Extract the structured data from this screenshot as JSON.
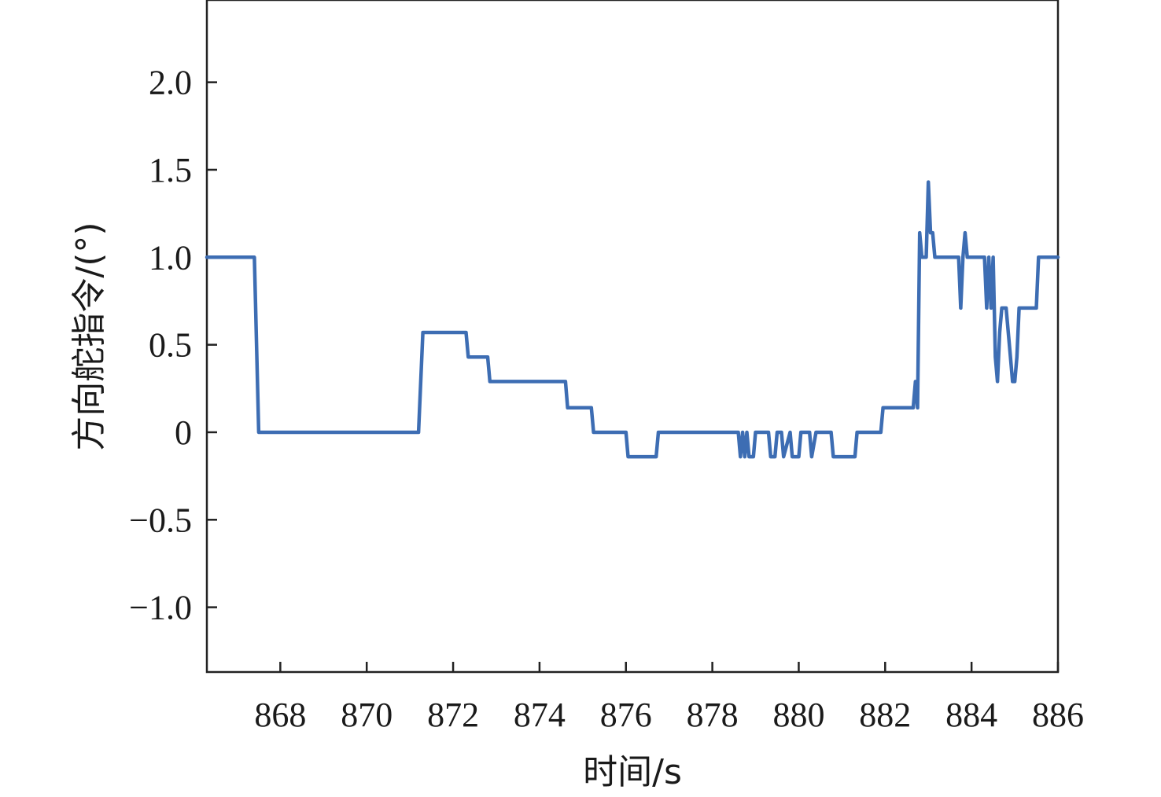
{
  "chart_data": {
    "type": "line",
    "xlabel": "时间/s",
    "ylabel": "方向舵指令/(°)",
    "xlim": [
      866.3,
      886.0
    ],
    "ylim": [
      -1.37,
      2.47
    ],
    "xticks": [
      868,
      870,
      872,
      874,
      876,
      878,
      880,
      882,
      884,
      886
    ],
    "yticks": [
      -1.0,
      -0.5,
      0,
      0.5,
      1.0,
      1.5,
      2.0
    ],
    "ytick_labels": [
      "−1.0",
      "−0.5",
      "0",
      "0.5",
      "1.0",
      "1.5",
      "2.0"
    ],
    "grid": false,
    "legend": "none",
    "colors": {
      "line": "#3d6db3",
      "axes": "#222222"
    },
    "series": [
      {
        "x": [
          866.3,
          867.4,
          867.5,
          871.2,
          871.3,
          872.3,
          872.35,
          872.8,
          872.85,
          874.6,
          874.65,
          875.2,
          875.25,
          876.0,
          876.05,
          876.7,
          876.75,
          878.6,
          878.65,
          878.7,
          878.75,
          878.8,
          878.85,
          878.95,
          879.0,
          879.05,
          879.1,
          879.3,
          879.35,
          879.45,
          879.5,
          879.6,
          879.65,
          879.8,
          879.85,
          880.0,
          880.05,
          880.25,
          880.3,
          880.4,
          880.45,
          880.55,
          880.6,
          880.75,
          880.8,
          881.3,
          881.35,
          881.9,
          881.95,
          882.65,
          882.7,
          882.75,
          882.8,
          882.85,
          882.9,
          882.95,
          883.0,
          883.05,
          883.1,
          883.15,
          883.2,
          883.3,
          883.7,
          883.75,
          883.8,
          883.85,
          883.9,
          883.95,
          884.3,
          884.35,
          884.4,
          884.45,
          884.5,
          884.55,
          884.6,
          884.65,
          884.7,
          884.75,
          884.8,
          884.9,
          884.95,
          885.0,
          885.05,
          885.1,
          885.15,
          885.2,
          885.5,
          885.55,
          886.0
        ],
        "y": [
          1.0,
          1.0,
          0.0,
          0.0,
          0.57,
          0.57,
          0.43,
          0.43,
          0.29,
          0.29,
          0.14,
          0.14,
          0.0,
          0.0,
          -0.14,
          -0.14,
          0.0,
          0.0,
          -0.14,
          0.0,
          -0.14,
          0.0,
          -0.14,
          -0.14,
          0.0,
          0.0,
          0.0,
          0.0,
          -0.14,
          -0.14,
          0.0,
          0.0,
          -0.14,
          0.0,
          -0.14,
          -0.14,
          0.0,
          0.0,
          -0.14,
          0.0,
          0.0,
          0.0,
          0.0,
          0.0,
          -0.14,
          -0.14,
          0.0,
          0.0,
          0.14,
          0.14,
          0.29,
          0.14,
          1.14,
          1.0,
          1.0,
          1.0,
          1.43,
          1.14,
          1.14,
          1.0,
          1.0,
          1.0,
          1.0,
          0.71,
          1.0,
          1.14,
          1.0,
          1.0,
          1.0,
          0.71,
          1.0,
          0.71,
          1.0,
          0.43,
          0.29,
          0.57,
          0.71,
          0.71,
          0.71,
          0.43,
          0.29,
          0.29,
          0.43,
          0.71,
          0.71,
          0.71,
          0.71,
          1.0,
          1.0
        ]
      }
    ]
  }
}
